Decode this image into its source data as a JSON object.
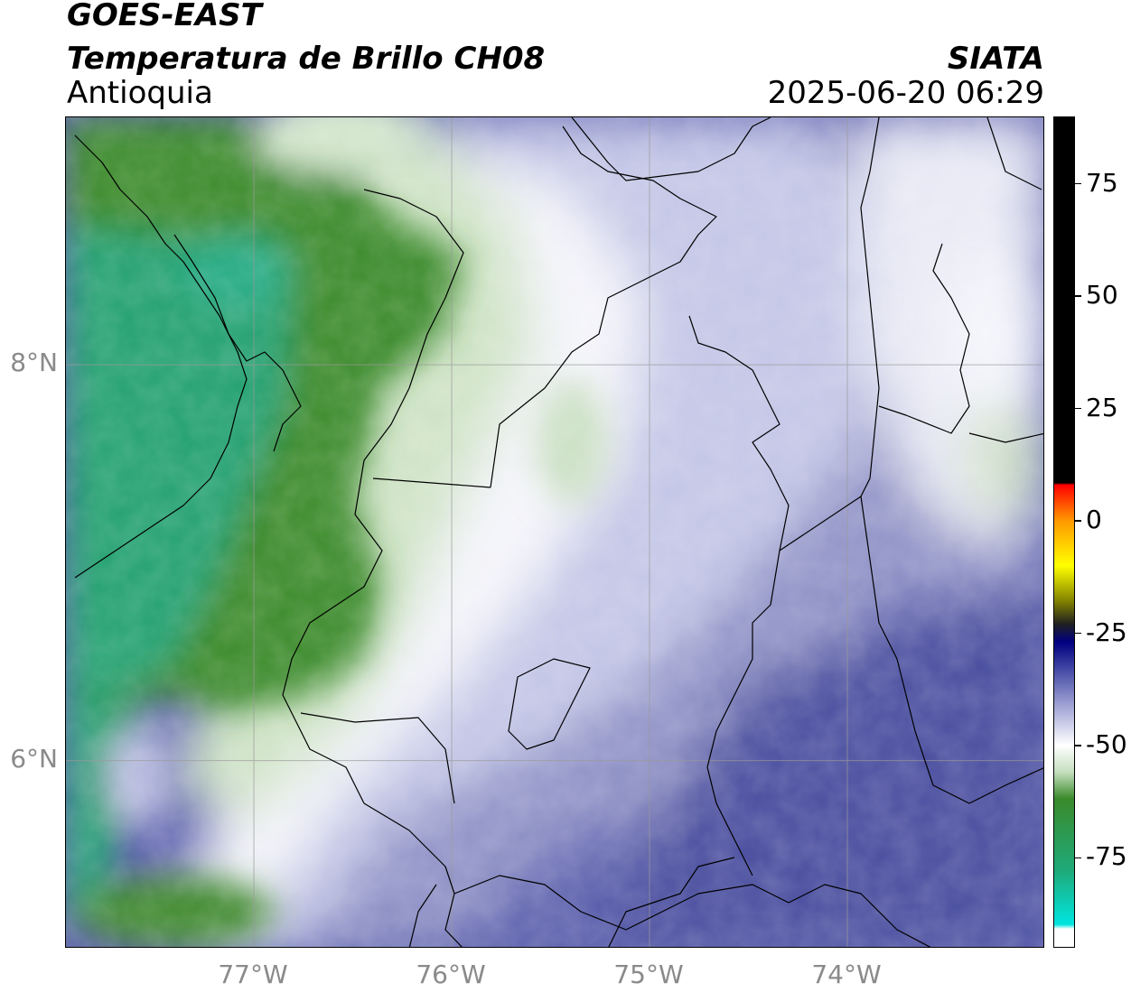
{
  "header": {
    "satellite": "GOES-EAST",
    "product": "Temperatura de Brillo CH08",
    "region": "Antioquia",
    "organization": "SIATA",
    "timestamp": "2025-06-20 06:29"
  },
  "map": {
    "lon_range": [
      -77.95,
      -73.0
    ],
    "lat_range": [
      5.05,
      9.25
    ],
    "lat_ticks": [
      {
        "value": 8,
        "label": "8°N"
      },
      {
        "value": 6,
        "label": "6°N"
      }
    ],
    "lon_ticks": [
      {
        "value": -77,
        "label": "77°W"
      },
      {
        "value": -76,
        "label": "76°W"
      },
      {
        "value": -75,
        "label": "75°W"
      },
      {
        "value": -74,
        "label": "74°W"
      }
    ],
    "colors": {
      "dark_green": "#3a8a2a",
      "teal": "#1fa87a",
      "light_green": "#cfe3c6",
      "white": "#f7f7fb",
      "lavender": "#c6c8e6",
      "periwinkle": "#8f92c6",
      "indigo": "#4b4fa0",
      "border": "#000000",
      "grid": "#9a9a9a"
    }
  },
  "colorbar": {
    "range": [
      -95,
      90
    ],
    "ticks": [
      {
        "value": 75,
        "label": "75"
      },
      {
        "value": 50,
        "label": "50"
      },
      {
        "value": 25,
        "label": "25"
      },
      {
        "value": 0,
        "label": "0"
      },
      {
        "value": -25,
        "label": "-25"
      },
      {
        "value": -50,
        "label": "-50"
      },
      {
        "value": -75,
        "label": "-75"
      }
    ],
    "stops": [
      {
        "value": 90,
        "color": "#000000"
      },
      {
        "value": 8.5,
        "color": "#000000"
      },
      {
        "value": 8,
        "color": "#ff0000"
      },
      {
        "value": 0,
        "color": "#ff9900"
      },
      {
        "value": -10,
        "color": "#ffff00"
      },
      {
        "value": -18,
        "color": "#808000"
      },
      {
        "value": -23,
        "color": "#202020"
      },
      {
        "value": -27,
        "color": "#000080"
      },
      {
        "value": -35,
        "color": "#5a5fb0"
      },
      {
        "value": -42,
        "color": "#a8abd8"
      },
      {
        "value": -50,
        "color": "#ffffff"
      },
      {
        "value": -56,
        "color": "#c5dfbf"
      },
      {
        "value": -62,
        "color": "#3a8a2a"
      },
      {
        "value": -78,
        "color": "#1faa7a"
      },
      {
        "value": -90,
        "color": "#00e5e0"
      },
      {
        "value": -91,
        "color": "#ffffff"
      },
      {
        "value": -95,
        "color": "#ffffff"
      }
    ]
  }
}
